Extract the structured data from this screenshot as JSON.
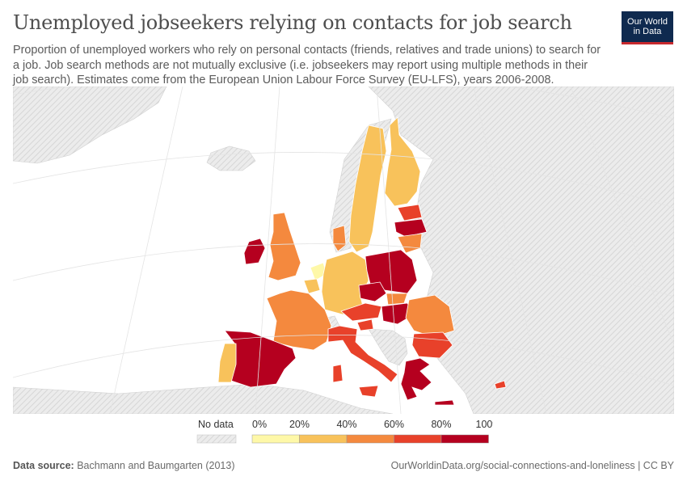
{
  "header": {
    "title": "Unemployed jobseekers relying on contacts for job search",
    "subtitle": "Proportion of unemployed workers who rely on personal contacts (friends, relatives and trade unions) to search for a job. Job search methods are not mutually exclusive (i.e. jobseekers may report using multiple methods in their job search). Estimates come from the European Union Labour Force Survey (EU-LFS), years 2006-2008."
  },
  "logo": {
    "line1": "Our World",
    "line2": "in Data"
  },
  "legend": {
    "no_data_label": "No data",
    "ticks": [
      "0%",
      "20%",
      "40%",
      "60%",
      "80%",
      "100%"
    ],
    "colors": [
      "#fef8a8",
      "#f8c25b",
      "#f4893e",
      "#e8412a",
      "#b5001f"
    ],
    "no_data_color": "#e9e9e9"
  },
  "colors": {
    "land_no_data": "#ececec",
    "sea": "#ffffff",
    "border": "#cfcfcf"
  },
  "footer": {
    "source_label": "Data source:",
    "source_value": "Bachmann and Baumgarten (2013)",
    "url": "OurWorldinData.org/social-connections-and-loneliness | CC BY"
  }
}
